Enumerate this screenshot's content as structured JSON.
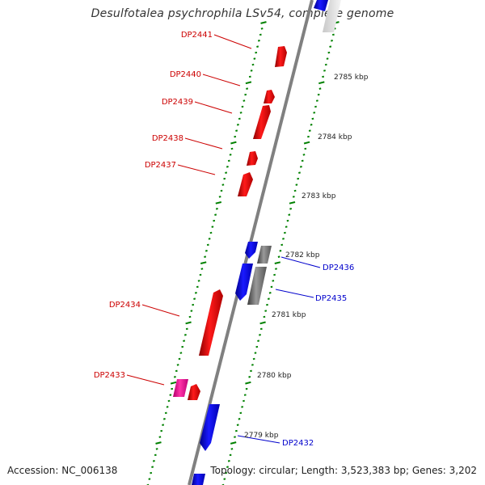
{
  "title": "Desulfotalea psychrophila LSv54, complete genome",
  "footer": {
    "accession": "Accession: NC_006138",
    "stats": "Topology: circular; Length: 3,523,383 bp; Genes: 3,202"
  },
  "colors": {
    "forward_gene": "#ff0000",
    "reverse_gene": "#0000ff",
    "pseudo_gene": "#808080",
    "rna_gene": "#ff1493",
    "tick": "#008000",
    "backbone": "#808080",
    "forward_label": "#cc0000",
    "reverse_label": "#0000cc"
  },
  "scale_labels": [
    "2785 kbp",
    "2784 kbp",
    "2783 kbp",
    "2782 kbp",
    "2781 kbp",
    "2780 kbp",
    "2779 kbp"
  ],
  "gene_labels": {
    "forward": [
      "DP2441",
      "DP2440",
      "DP2439",
      "DP2438",
      "DP2437",
      "DP2434",
      "DP2433"
    ],
    "reverse": [
      "DP2436",
      "DP2435",
      "DP2432"
    ]
  }
}
